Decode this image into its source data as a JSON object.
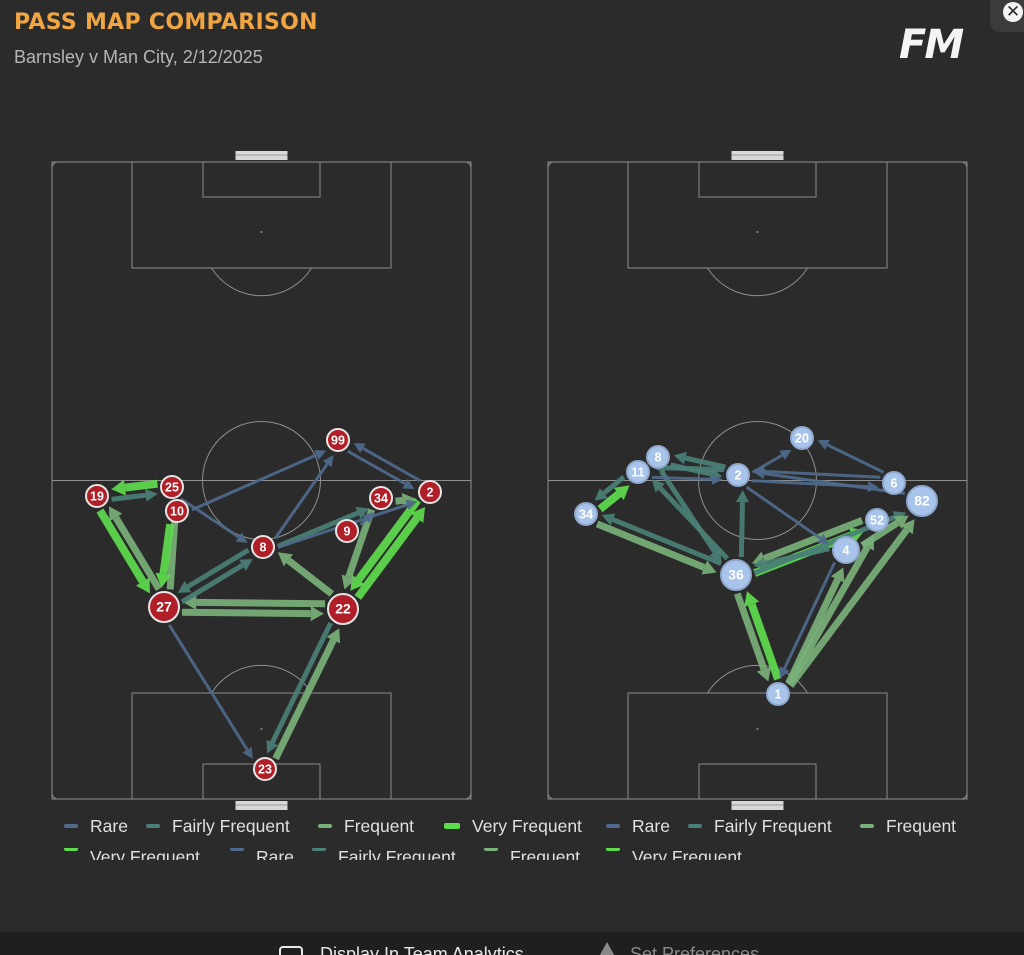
{
  "header": {
    "title": "PASS MAP COMPARISON",
    "subtitle": "Barnsley v Man City, 2/12/2025",
    "logo_text": "FM"
  },
  "colors": {
    "background": "#2b2b2b",
    "title": "#f0a542",
    "home_team": "#b01e28",
    "away_team": "#a8c4ea",
    "rare": "#4f6a8c",
    "fairly_frequent": "#4a8076",
    "frequent": "#7ab07a",
    "very_frequent": "#5fdc4e"
  },
  "legend": [
    {
      "label": "Rare",
      "level": "rare"
    },
    {
      "label": "Fairly Frequent",
      "level": "fairly_frequent"
    },
    {
      "label": "Frequent",
      "level": "frequent"
    },
    {
      "label": "Very Frequent",
      "level": "very_frequent"
    },
    {
      "label": "Rare",
      "level": "rare"
    },
    {
      "label": "Fairly Frequent",
      "level": "fairly_frequent"
    },
    {
      "label": "Frequent",
      "level": "frequent"
    }
  ],
  "legend_row2": [
    {
      "label": "Very Frequent",
      "level": "very_frequent"
    },
    {
      "label": "Rare",
      "level": "rare"
    },
    {
      "label": "Fairly Frequent",
      "level": "fairly_frequent"
    },
    {
      "label": "Frequent",
      "level": "frequent"
    },
    {
      "label": "Very Frequent",
      "level": "very_frequent"
    }
  ],
  "bottom_bar": {
    "checkbox_label": "Display In Team Analytics",
    "set_preferences_label": "Set Preferences"
  },
  "teams": [
    {
      "name": "Barnsley",
      "players": [
        {
          "num": "19",
          "pos": [
            97,
            496
          ]
        },
        {
          "num": "25",
          "pos": [
            172,
            487
          ]
        },
        {
          "num": "10",
          "pos": [
            177,
            511
          ]
        },
        {
          "num": "27",
          "pos": [
            164,
            607
          ]
        },
        {
          "num": "8",
          "pos": [
            263,
            547
          ]
        },
        {
          "num": "99",
          "pos": [
            338,
            440
          ]
        },
        {
          "num": "34",
          "pos": [
            381,
            498
          ]
        },
        {
          "num": "9",
          "pos": [
            347,
            531
          ]
        },
        {
          "num": "2",
          "pos": [
            430,
            492
          ]
        },
        {
          "num": "22",
          "pos": [
            343,
            609
          ]
        },
        {
          "num": "23",
          "pos": [
            265,
            769
          ]
        }
      ],
      "passes": [
        {
          "from": "19",
          "to": "27",
          "level": "very_frequent"
        },
        {
          "from": "27",
          "to": "19",
          "level": "frequent"
        },
        {
          "from": "25",
          "to": "19",
          "level": "very_frequent"
        },
        {
          "from": "19",
          "to": "25",
          "level": "fairly_frequent"
        },
        {
          "from": "27",
          "to": "25",
          "level": "frequent"
        },
        {
          "from": "10",
          "to": "27",
          "level": "very_frequent"
        },
        {
          "from": "27",
          "to": "22",
          "level": "frequent"
        },
        {
          "from": "22",
          "to": "27",
          "level": "frequent"
        },
        {
          "from": "27",
          "to": "8",
          "level": "fairly_frequent"
        },
        {
          "from": "8",
          "to": "27",
          "level": "fairly_frequent"
        },
        {
          "from": "22",
          "to": "8",
          "level": "frequent"
        },
        {
          "from": "8",
          "to": "34",
          "level": "fairly_frequent"
        },
        {
          "from": "2",
          "to": "22",
          "level": "very_frequent"
        },
        {
          "from": "22",
          "to": "2",
          "level": "very_frequent"
        },
        {
          "from": "34",
          "to": "22",
          "level": "frequent"
        },
        {
          "from": "23",
          "to": "22",
          "level": "frequent"
        },
        {
          "from": "22",
          "to": "23",
          "level": "fairly_frequent"
        },
        {
          "from": "27",
          "to": "23",
          "level": "rare"
        },
        {
          "from": "10",
          "to": "99",
          "level": "rare"
        },
        {
          "from": "8",
          "to": "99",
          "level": "rare"
        },
        {
          "from": "2",
          "to": "99",
          "level": "rare"
        },
        {
          "from": "99",
          "to": "2",
          "level": "rare"
        },
        {
          "from": "25",
          "to": "8",
          "level": "rare"
        },
        {
          "from": "34",
          "to": "2",
          "level": "frequent"
        },
        {
          "from": "9",
          "to": "34",
          "level": "rare"
        },
        {
          "from": "8",
          "to": "2",
          "level": "rare"
        }
      ]
    },
    {
      "name": "Man City",
      "players": [
        {
          "num": "8",
          "pos": [
            658,
            457
          ]
        },
        {
          "num": "11",
          "pos": [
            638,
            472
          ]
        },
        {
          "num": "34",
          "pos": [
            586,
            514
          ]
        },
        {
          "num": "2",
          "pos": [
            738,
            475
          ]
        },
        {
          "num": "20",
          "pos": [
            802,
            438
          ]
        },
        {
          "num": "6",
          "pos": [
            894,
            483
          ]
        },
        {
          "num": "82",
          "pos": [
            922,
            501
          ]
        },
        {
          "num": "52",
          "pos": [
            877,
            520
          ]
        },
        {
          "num": "4",
          "pos": [
            846,
            550
          ]
        },
        {
          "num": "36",
          "pos": [
            736,
            575
          ]
        },
        {
          "num": "1",
          "pos": [
            778,
            694
          ]
        }
      ],
      "passes": [
        {
          "from": "1",
          "to": "36",
          "level": "very_frequent"
        },
        {
          "from": "36",
          "to": "1",
          "level": "frequent"
        },
        {
          "from": "1",
          "to": "82",
          "level": "frequent"
        },
        {
          "from": "1",
          "to": "52",
          "level": "frequent"
        },
        {
          "from": "1",
          "to": "4",
          "level": "frequent"
        },
        {
          "from": "36",
          "to": "52",
          "level": "very_frequent"
        },
        {
          "from": "52",
          "to": "36",
          "level": "frequent"
        },
        {
          "from": "36",
          "to": "34",
          "level": "fairly_frequent"
        },
        {
          "from": "34",
          "to": "36",
          "level": "frequent"
        },
        {
          "from": "36",
          "to": "11",
          "level": "fairly_frequent"
        },
        {
          "from": "8",
          "to": "36",
          "level": "fairly_frequent"
        },
        {
          "from": "36",
          "to": "2",
          "level": "fairly_frequent"
        },
        {
          "from": "34",
          "to": "11",
          "level": "very_frequent"
        },
        {
          "from": "11",
          "to": "34",
          "level": "fairly_frequent"
        },
        {
          "from": "2",
          "to": "8",
          "level": "fairly_frequent"
        },
        {
          "from": "8",
          "to": "2",
          "level": "fairly_frequent"
        },
        {
          "from": "2",
          "to": "11",
          "level": "fairly_frequent"
        },
        {
          "from": "6",
          "to": "2",
          "level": "rare"
        },
        {
          "from": "2",
          "to": "6",
          "level": "rare"
        },
        {
          "from": "6",
          "to": "20",
          "level": "rare"
        },
        {
          "from": "2",
          "to": "20",
          "level": "rare"
        },
        {
          "from": "36",
          "to": "82",
          "level": "fairly_frequent"
        },
        {
          "from": "4",
          "to": "36",
          "level": "fairly_frequent"
        },
        {
          "from": "4",
          "to": "82",
          "level": "frequent"
        },
        {
          "from": "2",
          "to": "4",
          "level": "rare"
        },
        {
          "from": "82",
          "to": "2",
          "level": "rare"
        },
        {
          "from": "4",
          "to": "1",
          "level": "rare"
        },
        {
          "from": "11",
          "to": "2",
          "level": "rare"
        }
      ]
    }
  ]
}
